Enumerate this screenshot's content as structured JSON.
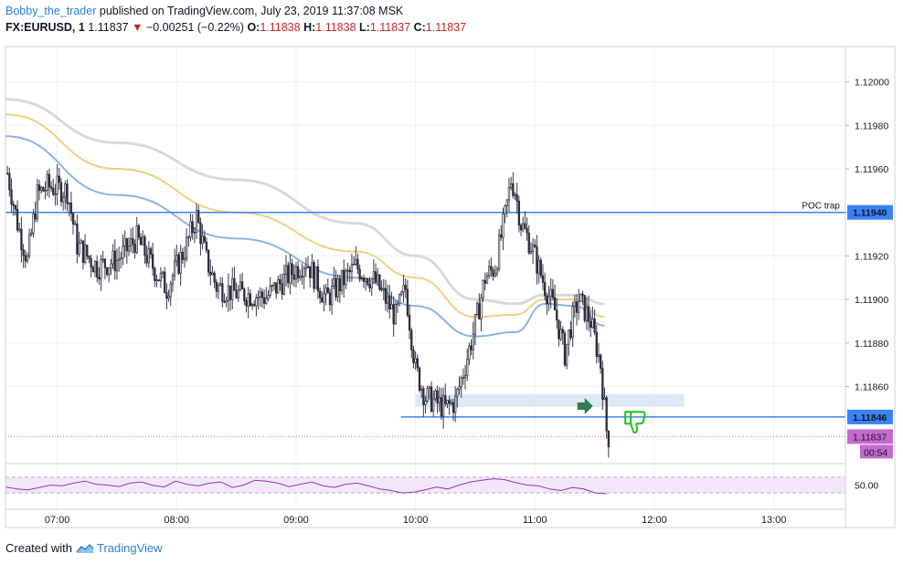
{
  "header": {
    "author": "Bobby_the_trader",
    "published": " published on TradingView.com, July 23, 2019 11:37:08 MSK",
    "symbol": "FX:EURUSD, 1",
    "last": "1.11837",
    "change_arrow": "▼",
    "change": "−0.00251 (−0.22%)",
    "open_label": "O:",
    "open": "1.11838",
    "high_label": "H:",
    "high": "1.11838",
    "low_label": "L:",
    "low": "1.11837",
    "close_label": "C:",
    "close": "1.11837"
  },
  "footer": {
    "created_with": "Created with",
    "brand": "TradingView"
  },
  "chart_data": {
    "type": "candlestick",
    "symbol": "FX:EURUSD",
    "interval": "1",
    "price_axis": {
      "range": [
        1.11825,
        1.12012
      ],
      "ticks": [
        1.12,
        1.1198,
        1.1196,
        1.1194,
        1.1192,
        1.119,
        1.1188,
        1.1186
      ],
      "tick_labels": [
        "1.12000",
        "1.11980",
        "1.11960",
        "1.11940",
        "1.11920",
        "1.11900",
        "1.11880",
        "1.11860"
      ]
    },
    "time_axis": {
      "range": [
        "06:34",
        "13:36"
      ],
      "ticks": [
        "07:00",
        "08:00",
        "09:00",
        "10:00",
        "11:00",
        "12:00",
        "13:00"
      ]
    },
    "price_path": [
      [
        "06:35",
        1.11958
      ],
      [
        "06:40",
        1.11935
      ],
      [
        "06:45",
        1.11918
      ],
      [
        "06:50",
        1.11948
      ],
      [
        "06:55",
        1.11952
      ],
      [
        "07:05",
        1.1195
      ],
      [
        "07:10",
        1.11925
      ],
      [
        "07:20",
        1.11915
      ],
      [
        "07:30",
        1.11918
      ],
      [
        "07:40",
        1.11928
      ],
      [
        "07:50",
        1.11912
      ],
      [
        "07:55",
        1.11905
      ],
      [
        "08:05",
        1.11925
      ],
      [
        "08:10",
        1.11938
      ],
      [
        "08:15",
        1.11918
      ],
      [
        "08:20",
        1.11906
      ],
      [
        "08:30",
        1.11903
      ],
      [
        "08:45",
        1.11901
      ],
      [
        "08:55",
        1.1191
      ],
      [
        "09:05",
        1.11918
      ],
      [
        "09:15",
        1.119
      ],
      [
        "09:30",
        1.11915
      ],
      [
        "09:40",
        1.11908
      ],
      [
        "09:50",
        1.11892
      ],
      [
        "09:55",
        1.11905
      ],
      [
        "10:00",
        1.11868
      ],
      [
        "10:05",
        1.11855
      ],
      [
        "10:10",
        1.11853
      ],
      [
        "10:15",
        1.1185
      ],
      [
        "10:20",
        1.11853
      ],
      [
        "10:25",
        1.1187
      ],
      [
        "10:30",
        1.11888
      ],
      [
        "10:35",
        1.1191
      ],
      [
        "10:40",
        1.11915
      ],
      [
        "10:45",
        1.11938
      ],
      [
        "10:48",
        1.11955
      ],
      [
        "10:50",
        1.1195
      ],
      [
        "10:53",
        1.11935
      ],
      [
        "10:58",
        1.11925
      ],
      [
        "11:05",
        1.11906
      ],
      [
        "11:10",
        1.11895
      ],
      [
        "11:15",
        1.11875
      ],
      [
        "11:18",
        1.11888
      ],
      [
        "11:22",
        1.119
      ],
      [
        "11:28",
        1.1189
      ],
      [
        "11:33",
        1.1187
      ],
      [
        "11:35",
        1.1185
      ],
      [
        "11:36",
        1.1184
      ],
      [
        "11:37",
        1.11837
      ]
    ],
    "moving_averages": [
      {
        "color": "#d9d9d9",
        "points": [
          [
            "06:34",
            1.11992
          ],
          [
            "07:30",
            1.11972
          ],
          [
            "08:30",
            1.11955
          ],
          [
            "09:30",
            1.11935
          ],
          [
            "10:00",
            1.1192
          ],
          [
            "10:30",
            1.119
          ],
          [
            "10:50",
            1.11898
          ],
          [
            "11:05",
            1.11902
          ],
          [
            "11:20",
            1.11902
          ],
          [
            "11:35",
            1.11898
          ]
        ]
      },
      {
        "color": "#f0d080",
        "points": [
          [
            "06:34",
            1.11985
          ],
          [
            "07:30",
            1.1196
          ],
          [
            "08:30",
            1.1194
          ],
          [
            "09:30",
            1.11922
          ],
          [
            "10:00",
            1.1191
          ],
          [
            "10:30",
            1.11892
          ],
          [
            "10:50",
            1.11893
          ],
          [
            "11:05",
            1.119
          ],
          [
            "11:20",
            1.119
          ],
          [
            "11:35",
            1.11892
          ]
        ]
      },
      {
        "color": "#8ab4e8",
        "points": [
          [
            "06:34",
            1.11975
          ],
          [
            "07:30",
            1.11948
          ],
          [
            "08:30",
            1.11928
          ],
          [
            "09:30",
            1.1191
          ],
          [
            "10:00",
            1.11897
          ],
          [
            "10:30",
            1.11883
          ],
          [
            "10:50",
            1.11885
          ],
          [
            "11:05",
            1.11898
          ],
          [
            "11:20",
            1.11897
          ],
          [
            "11:35",
            1.11888
          ]
        ]
      }
    ],
    "horizontal_lines": [
      {
        "price": 1.1194,
        "label": "POC trap",
        "badge": "1.11940",
        "color": "#3b82f6"
      },
      {
        "price": 1.11846,
        "badge": "1.11846",
        "color": "#3b82f6"
      }
    ],
    "zone": {
      "from": "10:00",
      "to": "12:15",
      "low": 1.11849,
      "high": 1.11854,
      "color": "#d6e4f7"
    },
    "current_price": {
      "price": 1.11837,
      "badge": "1.11837",
      "countdown": "00:54",
      "color": "#c56ad1"
    },
    "annotations": [
      {
        "type": "arrow",
        "color": "#2e7d4f",
        "at": [
          "11:25",
          1.11851
        ]
      },
      {
        "type": "thumbs-down",
        "color": "#18c418",
        "at": [
          "11:50",
          1.11845
        ]
      }
    ],
    "oscillator": {
      "level_label": "50.00",
      "bands": [
        70,
        30
      ],
      "range": [
        0,
        100
      ],
      "values": [
        45,
        40,
        38,
        44,
        50,
        48,
        55,
        60,
        52,
        50,
        46,
        55,
        58,
        49,
        45,
        60,
        52,
        48,
        55,
        58,
        44,
        50,
        62,
        60,
        55,
        46,
        52,
        58,
        48,
        44,
        52,
        55,
        48,
        40,
        36,
        30,
        32,
        38,
        45,
        40,
        50,
        58,
        62,
        66,
        64,
        56,
        50,
        48,
        40,
        36,
        44,
        40,
        30,
        28
      ]
    }
  }
}
